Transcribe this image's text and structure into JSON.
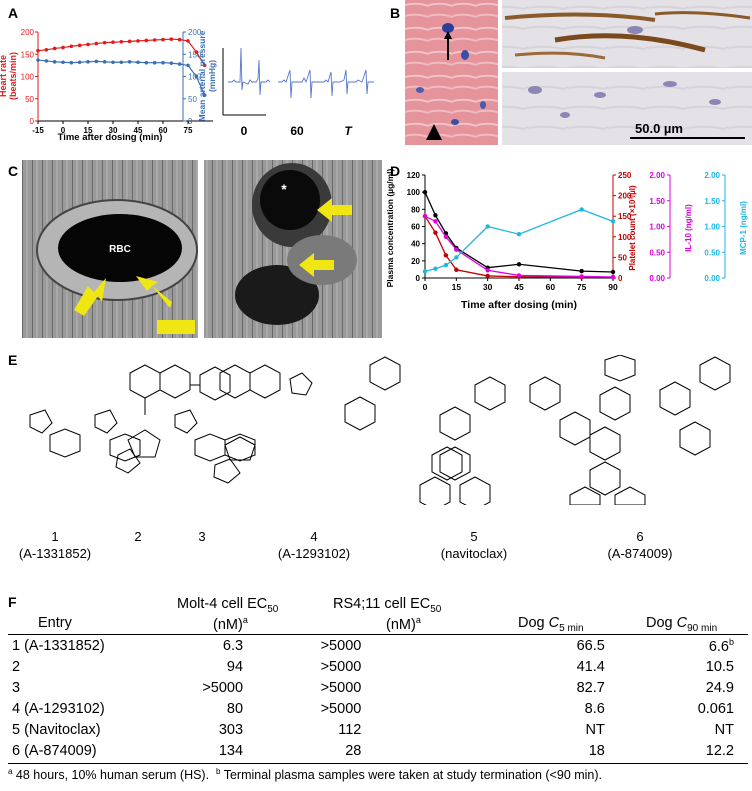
{
  "panel_labels": {
    "A": "A",
    "B": "B",
    "C": "C",
    "D": "D",
    "E": "E",
    "F": "F"
  },
  "panelA": {
    "chart_data": {
      "type": "line",
      "xlabel": "Time after dosing (min)",
      "ylabel_left": "Heart rate (beats/min)",
      "ylabel_right": "Mean arterial pressure (mmHg)",
      "x_ticks": [
        "-15",
        "0",
        "15",
        "30",
        "45",
        "60",
        "75"
      ],
      "xlim": [
        -15,
        90
      ],
      "ylim_left": [
        0,
        200
      ],
      "ylim_right": [
        0,
        200
      ],
      "left_ticks": [
        "0",
        "50",
        "100",
        "150",
        "200"
      ],
      "right_ticks": [
        "0",
        "50",
        "100",
        "150",
        "200"
      ],
      "series": [
        {
          "axis": "left",
          "color": "#e31a1c",
          "x": [
            -15,
            -10,
            -5,
            0,
            5,
            10,
            15,
            20,
            25,
            30,
            35,
            40,
            45,
            50,
            55,
            60,
            65,
            70,
            75,
            80,
            85
          ],
          "y": [
            158,
            160,
            163,
            165,
            168,
            170,
            172,
            174,
            176,
            177,
            178,
            179,
            180,
            181,
            182,
            183,
            184,
            183,
            180,
            155,
            125
          ]
        },
        {
          "axis": "right",
          "color": "#3a6fb5",
          "x": [
            -15,
            -10,
            -5,
            0,
            5,
            10,
            15,
            20,
            25,
            30,
            35,
            40,
            45,
            50,
            55,
            60,
            65,
            70,
            75,
            80,
            85
          ],
          "y": [
            137,
            135,
            133,
            132,
            131,
            132,
            133,
            134,
            133,
            132,
            132,
            133,
            132,
            131,
            131,
            131,
            130,
            128,
            125,
            100,
            58
          ]
        }
      ]
    },
    "ecg_labels": [
      "0",
      "60",
      "T"
    ]
  },
  "panelB": {
    "scale_bar": "50.0 µm"
  },
  "panelC": {
    "rbc_label": "RBC",
    "star_label": "*"
  },
  "panelD": {
    "chart_data": {
      "type": "line",
      "xlabel": "Time after dosing (min)",
      "ylabel_left": "Plasma concentration (µg/ml)",
      "ylabel_platelet": "Platelet count (×10³/µl)",
      "ylabel_il10": "IL-10 (ng/ml)",
      "ylabel_mcp1": "MCP-1 (ng/ml)",
      "x_ticks": [
        "0",
        "15",
        "30",
        "45",
        "60",
        "75",
        "90"
      ],
      "left_ticks": [
        "0",
        "20",
        "40",
        "60",
        "80",
        "100",
        "120"
      ],
      "platelet_ticks": [
        "0",
        "50",
        "100",
        "150",
        "200",
        "250"
      ],
      "il10_ticks": [
        "0.00",
        "0.50",
        "1.00",
        "1.50",
        "2.00"
      ],
      "mcp1_ticks": [
        "0.00",
        "0.50",
        "1.00",
        "1.50",
        "2.00"
      ],
      "series": [
        {
          "name": "Plasma concentration",
          "color": "#000000",
          "axis": "left",
          "x": [
            0,
            5,
            10,
            15,
            30,
            45,
            75,
            90
          ],
          "y": [
            100,
            73,
            52,
            35,
            12,
            16,
            8,
            7
          ]
        },
        {
          "name": "Platelet count",
          "color": "#c00000",
          "axis": "platelet",
          "x": [
            0,
            5,
            10,
            15,
            30,
            45,
            75,
            90
          ],
          "y": [
            150,
            110,
            55,
            20,
            5,
            3,
            2,
            2
          ]
        },
        {
          "name": "IL-10",
          "color": "#e000e0",
          "axis": "il10",
          "x": [
            0,
            5,
            10,
            15,
            30,
            45,
            75,
            90
          ],
          "y": [
            1.2,
            1.1,
            0.8,
            0.55,
            0.15,
            0.05,
            0.03,
            0.02
          ]
        },
        {
          "name": "MCP-1",
          "color": "#1fb6e0",
          "axis": "mcp1",
          "x": [
            0,
            5,
            10,
            15,
            30,
            45,
            75,
            90
          ],
          "y": [
            0.13,
            0.18,
            0.25,
            0.4,
            1.0,
            0.85,
            1.33,
            1.1
          ]
        }
      ]
    }
  },
  "panelE": {
    "molecules": [
      {
        "number": "1",
        "code": "(A-1331852)"
      },
      {
        "number": "2",
        "code": ""
      },
      {
        "number": "3",
        "code": ""
      },
      {
        "number": "4",
        "code": "(A-1293102)"
      },
      {
        "number": "5",
        "code": "(navitoclax)"
      },
      {
        "number": "6",
        "code": "(A-874009)"
      }
    ]
  },
  "panelF": {
    "headers": {
      "entry": "Entry",
      "molt_line1": "Molt-4 cell EC",
      "molt_sub": "50",
      "molt_line2": "(nM)",
      "molt_sup": "a",
      "rs_line1": "RS4;11 cell EC",
      "rs_sub": "50",
      "rs_line2": "(nM)",
      "rs_sup": "a",
      "dog5_prefix": "Dog ",
      "dog5_c": "C",
      "dog5_sub": "5 min",
      "dog90_prefix": "Dog ",
      "dog90_c": "C",
      "dog90_sub": "90 min"
    },
    "rows": [
      {
        "entry": "1 (A-1331852)",
        "molt": "6.3",
        "rs": ">5000",
        "dog5": "66.5",
        "dog90": "6.6",
        "dog90_sup": "b"
      },
      {
        "entry": "2",
        "molt": "94",
        "rs": ">5000",
        "dog5": "41.4",
        "dog90": "10.5",
        "dog90_sup": ""
      },
      {
        "entry": "3",
        "molt": ">5000",
        "rs": ">5000",
        "dog5": "82.7",
        "dog90": "24.9",
        "dog90_sup": ""
      },
      {
        "entry": "4 (A-1293102)",
        "molt": "80",
        "rs": ">5000",
        "dog5": "8.6",
        "dog90": "0.061",
        "dog90_sup": ""
      },
      {
        "entry": "5 (Navitoclax)",
        "molt": "303",
        "rs": "112",
        "dog5": "NT",
        "dog90": "NT",
        "dog90_sup": ""
      },
      {
        "entry": "6 (A-874009)",
        "molt": "134",
        "rs": "28",
        "dog5": "18",
        "dog90": "12.2",
        "dog90_sup": ""
      }
    ],
    "footnote_a_mark": "a",
    "footnote_a": " 48 hours, 10% human serum (HS).",
    "footnote_b_mark": "b",
    "footnote_b": " Terminal plasma samples were taken at study termination (<90 min)."
  }
}
